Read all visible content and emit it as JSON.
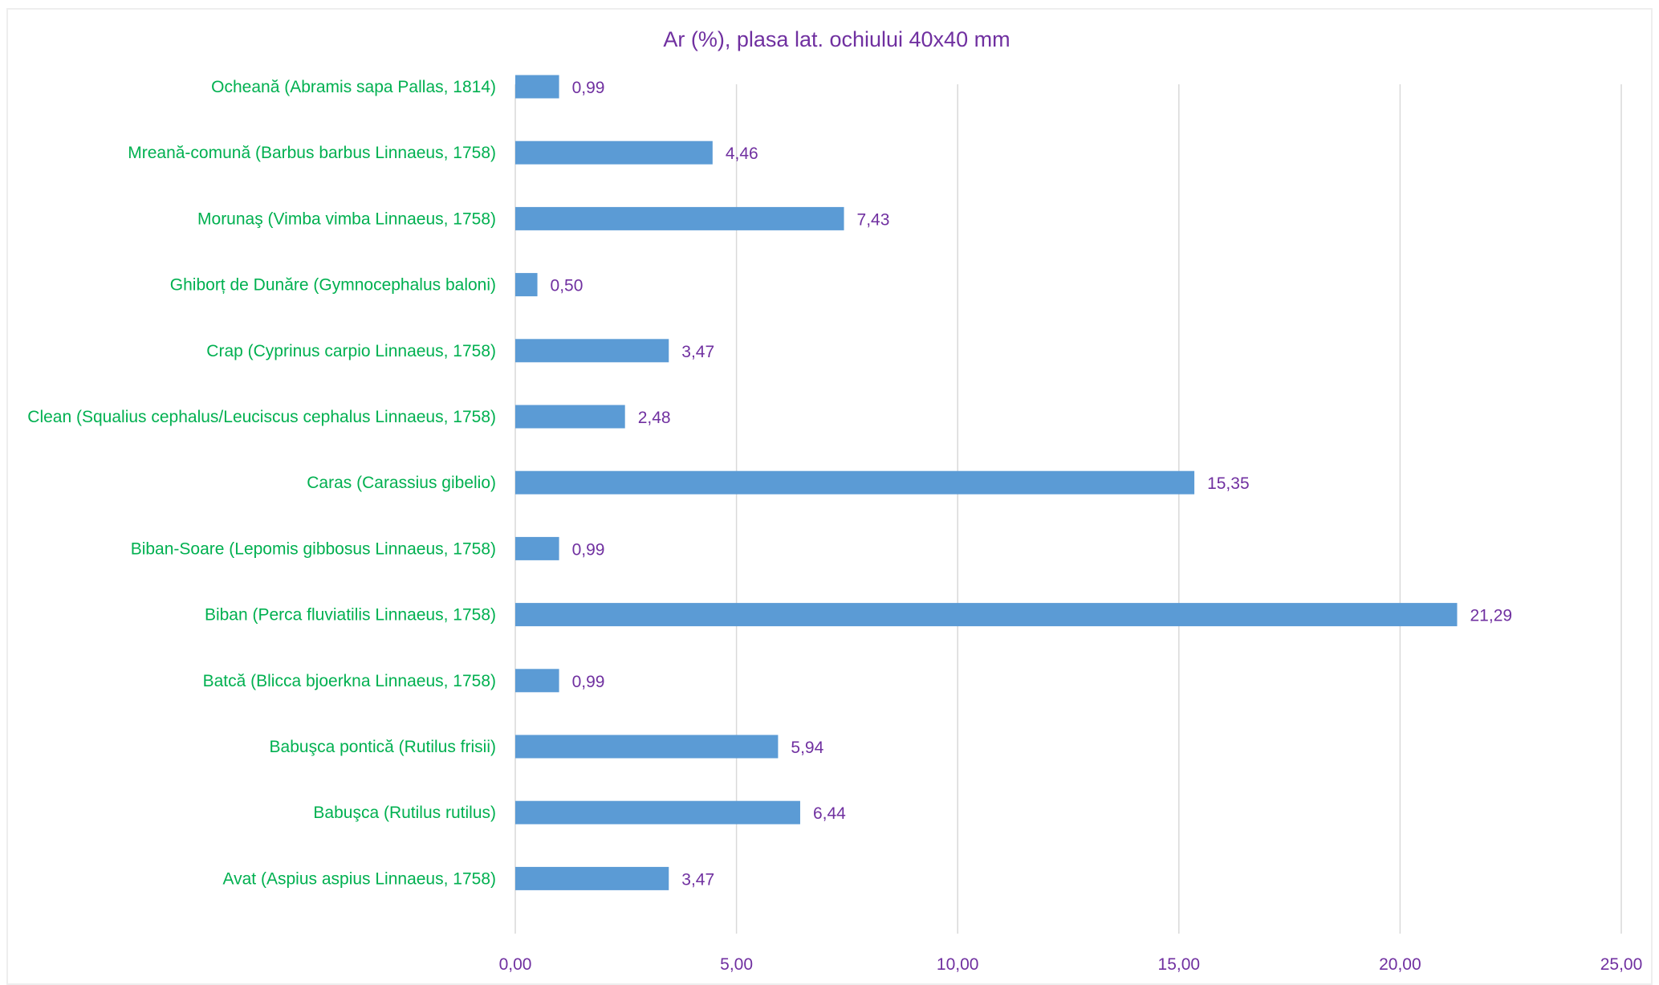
{
  "chart_data": {
    "type": "bar",
    "orientation": "horizontal",
    "title": "Ar (%), plasa lat. ochiului 40x40 mm",
    "categories": [
      "Ocheană (Abramis sapa Pallas, 1814)",
      "Mreană-comună (Barbus barbus Linnaeus, 1758)",
      "Morunaş (Vimba vimba Linnaeus, 1758)",
      "Ghiborț de Dunăre (Gymnocephalus baloni)",
      "Crap (Cyprinus carpio Linnaeus, 1758)",
      "Clean (Squalius cephalus/Leuciscus cephalus Linnaeus, 1758)",
      "Caras (Carassius gibelio)",
      "Biban-Soare (Lepomis gibbosus Linnaeus, 1758)",
      "Biban (Perca fluviatilis Linnaeus, 1758)",
      "Batcă (Blicca bjoerkna Linnaeus, 1758)",
      "Babuşca pontică (Rutilus frisii)",
      "Babuşca (Rutilus rutilus)",
      "Avat  (Aspius aspius Linnaeus, 1758)"
    ],
    "values": [
      0.99,
      4.46,
      7.43,
      0.5,
      3.47,
      2.48,
      15.35,
      0.99,
      21.29,
      0.99,
      5.94,
      6.44,
      3.47
    ],
    "value_labels": [
      "0,99",
      "4,46",
      "7,43",
      "0,50",
      "3,47",
      "2,48",
      "15,35",
      "0,99",
      "21,29",
      "0,99",
      "5,94",
      "6,44",
      "3,47"
    ],
    "x_ticks": [
      "0,00",
      "5,00",
      "10,00",
      "15,00",
      "20,00",
      "25,00"
    ],
    "xlim": [
      0,
      25
    ],
    "grid": true,
    "legend": "none",
    "colors": {
      "bar": "#5b9bd5",
      "category_text": "#00b050",
      "value_text": "#7030a0",
      "title_text": "#7030a0",
      "grid": "#d9d9d9"
    }
  }
}
